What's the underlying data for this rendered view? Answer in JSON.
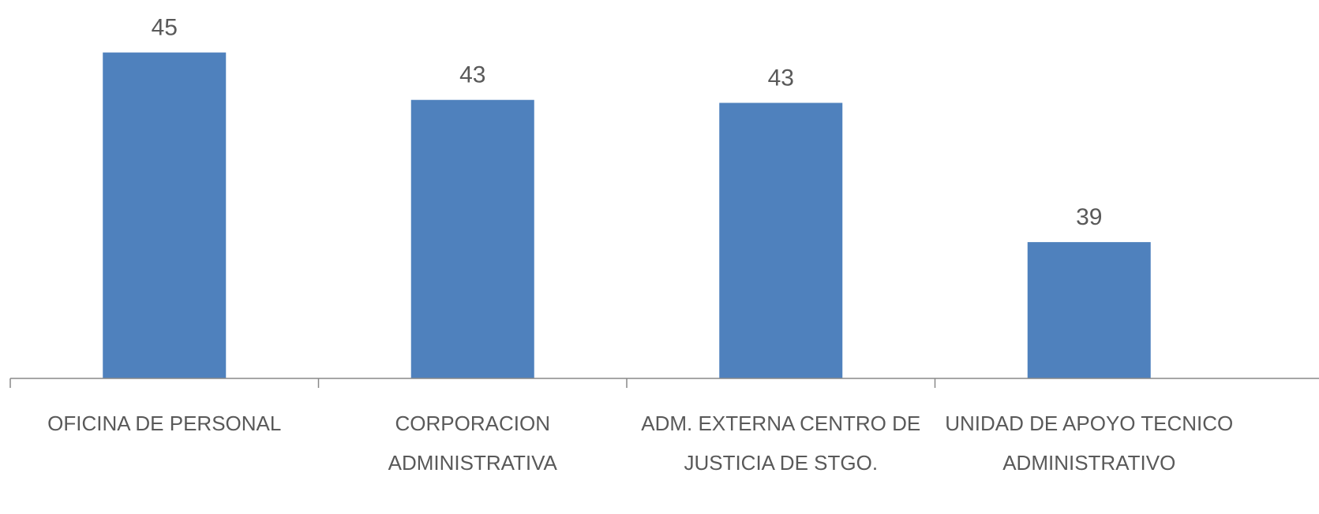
{
  "chart_data": {
    "type": "bar",
    "categories": [
      "OFICINA DE PERSONAL",
      "CORPORACION ADMINISTRATIVA",
      "ADM. EXTERNA CENTRO DE JUSTICIA DE STGO.",
      "UNIDAD DE APOYO TECNICO ADMINISTRATIVO"
    ],
    "values": [
      45,
      43.4,
      43.3,
      38.6
    ],
    "value_labels": [
      "45",
      "43",
      "43",
      "39"
    ],
    "color": "#4f81bd",
    "ylim": [
      34,
      46
    ]
  }
}
